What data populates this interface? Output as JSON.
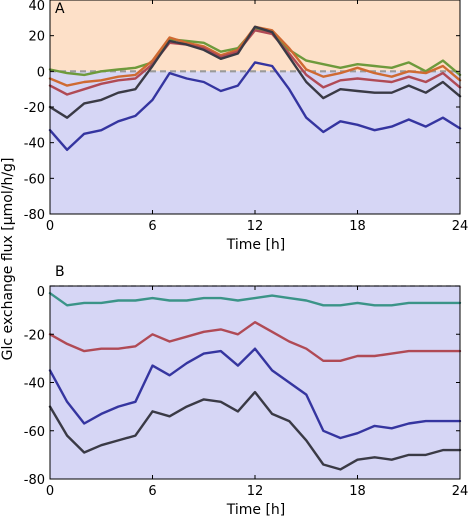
{
  "shared_ylabel": "Glc exchange flux [µmol/h/g]",
  "chart_data": [
    {
      "type": "line",
      "panel_label": "A",
      "xlabel": "Time  [h]",
      "ylabel": "",
      "xlim": [
        0,
        24
      ],
      "ylim": [
        -80,
        40
      ],
      "xticks": [
        0,
        6,
        12,
        18,
        24
      ],
      "yticks": [
        -80,
        -60,
        -40,
        -20,
        0,
        20,
        40
      ],
      "shading": {
        "above_zero": "#fde0c8",
        "below_zero": "#d6d6f5"
      },
      "zero_line_color": "#9a9a9a",
      "x": [
        0,
        1,
        2,
        3,
        4,
        5,
        6,
        7,
        8,
        9,
        10,
        11,
        12,
        13,
        14,
        15,
        16,
        17,
        18,
        19,
        20,
        21,
        22,
        23,
        24
      ],
      "series": [
        {
          "color": "#6e9a3c",
          "values": [
            1,
            -1,
            -2,
            0,
            1,
            2,
            5,
            18,
            17,
            16,
            11,
            13,
            24,
            22,
            12,
            6,
            4,
            2,
            4,
            3,
            2,
            5,
            0,
            6,
            -2
          ]
        },
        {
          "color": "#cf6a32",
          "values": [
            -4,
            -8,
            -6,
            -5,
            -3,
            -2,
            6,
            19,
            16,
            14,
            9,
            12,
            25,
            23,
            13,
            1,
            -3,
            -1,
            2,
            -1,
            -3,
            0,
            -1,
            3,
            -5
          ]
        },
        {
          "color": "#b04a55",
          "values": [
            -8,
            -13,
            -10,
            -7,
            -5,
            -4,
            4,
            16,
            15,
            13,
            8,
            11,
            23,
            21,
            10,
            -2,
            -9,
            -5,
            -4,
            -5,
            -6,
            -3,
            -6,
            -1,
            -9
          ]
        },
        {
          "color": "#3a3a45",
          "values": [
            -20,
            -26,
            -18,
            -16,
            -12,
            -10,
            3,
            17,
            15,
            12,
            7,
            10,
            25,
            22,
            8,
            -6,
            -15,
            -10,
            -11,
            -12,
            -12,
            -8,
            -12,
            -6,
            -14
          ]
        },
        {
          "color": "#3535a0",
          "values": [
            -33,
            -44,
            -35,
            -33,
            -28,
            -25,
            -16,
            -1,
            -4,
            -6,
            -11,
            -8,
            5,
            3,
            -10,
            -26,
            -34,
            -28,
            -30,
            -33,
            -31,
            -27,
            -31,
            -26,
            -32
          ]
        }
      ]
    },
    {
      "type": "line",
      "panel_label": "B",
      "xlabel": "Time  [h]",
      "ylabel": "",
      "xlim": [
        0,
        24
      ],
      "ylim": [
        -80,
        0
      ],
      "xticks": [
        0,
        6,
        12,
        18,
        24
      ],
      "yticks": [
        -80,
        -60,
        -40,
        -20,
        0
      ],
      "shading": {
        "below_zero": "#d6d6f5"
      },
      "zero_line_color": "#7a7a9a",
      "x": [
        0,
        1,
        2,
        3,
        4,
        5,
        6,
        7,
        8,
        9,
        10,
        11,
        12,
        13,
        14,
        15,
        16,
        17,
        18,
        19,
        20,
        21,
        22,
        23,
        24
      ],
      "series": [
        {
          "color": "#3b9488",
          "values": [
            -3,
            -8,
            -7,
            -7,
            -6,
            -6,
            -5,
            -6,
            -6,
            -5,
            -5,
            -6,
            -5,
            -4,
            -5,
            -6,
            -8,
            -8,
            -7,
            -8,
            -8,
            -7,
            -7,
            -7,
            -7
          ]
        },
        {
          "color": "#b04a55",
          "values": [
            -20,
            -24,
            -27,
            -26,
            -26,
            -25,
            -20,
            -23,
            -21,
            -19,
            -18,
            -20,
            -15,
            -19,
            -23,
            -26,
            -31,
            -31,
            -29,
            -29,
            -28,
            -27,
            -27,
            -27,
            -27
          ]
        },
        {
          "color": "#3535a0",
          "values": [
            -35,
            -48,
            -57,
            -53,
            -50,
            -48,
            -33,
            -37,
            -32,
            -28,
            -27,
            -33,
            -26,
            -35,
            -40,
            -45,
            -60,
            -63,
            -61,
            -58,
            -59,
            -57,
            -56,
            -56,
            -56
          ]
        },
        {
          "color": "#3a3a45",
          "values": [
            -50,
            -62,
            -69,
            -66,
            -64,
            -62,
            -52,
            -54,
            -50,
            -47,
            -48,
            -52,
            -44,
            -53,
            -56,
            -64,
            -74,
            -76,
            -72,
            -71,
            -72,
            -70,
            -70,
            -68,
            -68
          ]
        }
      ]
    }
  ]
}
